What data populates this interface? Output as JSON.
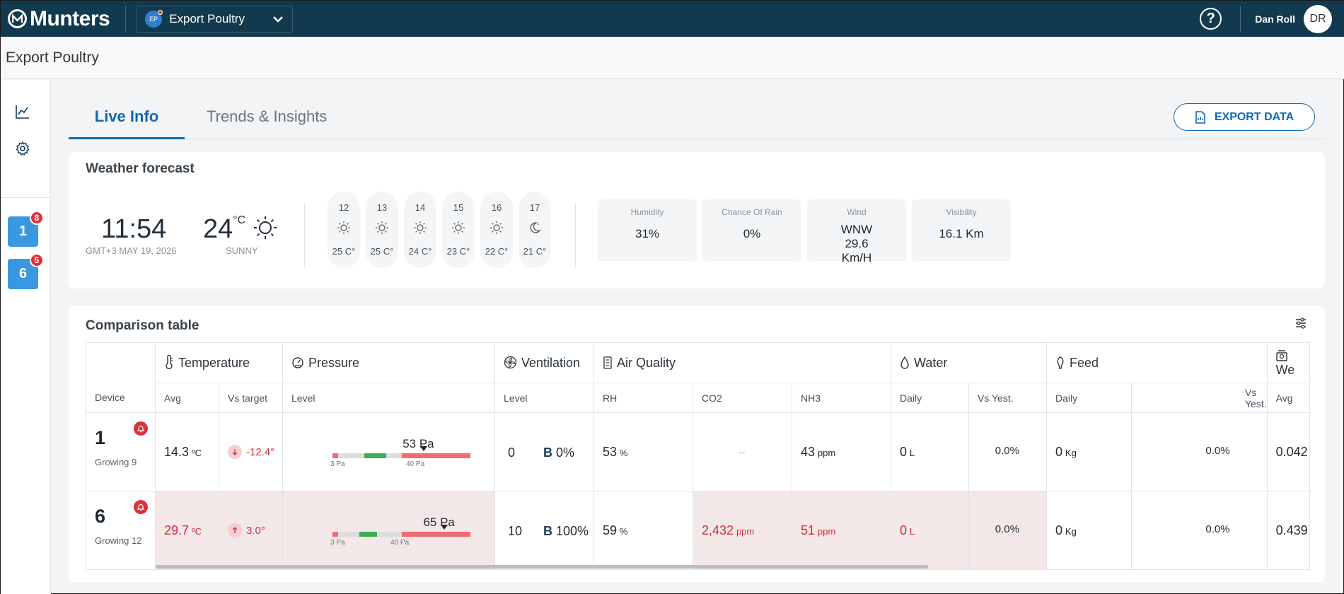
{
  "app": {
    "brand": "Munters"
  },
  "header": {
    "farm": {
      "initials": "EP",
      "name": "Export Poultry"
    },
    "help_symbol": "?",
    "user": {
      "name": "Dan Roll",
      "initials": "DR"
    }
  },
  "page": {
    "title": "Export Poultry"
  },
  "rail": {
    "houses": [
      {
        "number": "1",
        "badge": "8"
      },
      {
        "number": "6",
        "badge": "5"
      }
    ]
  },
  "tabs": {
    "live": "Live Info",
    "trends": "Trends & Insights"
  },
  "export_label": "EXPORT DATA",
  "weather": {
    "title": "Weather forecast",
    "time": "11:54",
    "datetime_sub": "GMT+3 MAY 19, 2026",
    "temp": "24",
    "temp_unit": "°C",
    "condition": "SUNNY",
    "hourly": [
      {
        "hour": "12",
        "icon": "sun-icon",
        "temp": "25 C°"
      },
      {
        "hour": "13",
        "icon": "sun-icon",
        "temp": "25 C°"
      },
      {
        "hour": "14",
        "icon": "sun-icon",
        "temp": "24 C°"
      },
      {
        "hour": "15",
        "icon": "sun-icon",
        "temp": "23 C°"
      },
      {
        "hour": "16",
        "icon": "sun-icon",
        "temp": "22 C°"
      },
      {
        "hour": "17",
        "icon": "moon-icon",
        "temp": "21 C°"
      }
    ],
    "stats": [
      {
        "label": "Humidity",
        "value": "31%"
      },
      {
        "label": "Chance Of Rain",
        "value": "0%"
      },
      {
        "label": "Wind",
        "value": "WNW 29.6 Km/H"
      },
      {
        "label": "Visibility",
        "value": "16.1 Km"
      }
    ]
  },
  "comparison": {
    "title": "Comparison table",
    "groups": {
      "temperature": "Temperature",
      "pressure": "Pressure",
      "ventilation": "Ventilation",
      "air_quality": "Air Quality",
      "water": "Water",
      "feed": "Feed",
      "weight": "We"
    },
    "sub": {
      "device": "Device",
      "avg": "Avg",
      "vs_target": "Vs target",
      "level": "Level",
      "vent_level": "Level",
      "rh": "RH",
      "co2": "CO2",
      "nh3": "NH3",
      "water_daily": "Daily",
      "water_vs": "Vs Yest.",
      "feed_daily": "Daily",
      "feed_vs": "Vs Yest.",
      "weight_avg": "Avg"
    },
    "pressure_ticks": {
      "low": "3 Pa",
      "high": "40 Pa"
    },
    "rows": [
      {
        "device": "1",
        "growing": "Growing 9",
        "temp": "14.3",
        "temp_unit": "ºC",
        "temp_diff": "-12.4°",
        "temp_dir": "down",
        "pressure": "53 Pa",
        "pressure_value": 53,
        "vent_level": "0",
        "vent_b": "B",
        "vent_pct": "0%",
        "rh": "53",
        "rh_unit": "%",
        "co2": "--",
        "nh3": "43",
        "nh3_unit": "ppm",
        "water": "0",
        "water_unit": "L",
        "water_vs": "0.0%",
        "feed": "0",
        "feed_unit": "Kg",
        "feed_vs": "0.0%",
        "weight": "0.042"
      },
      {
        "device": "6",
        "growing": "Growing 12",
        "temp": "29.7",
        "temp_unit": "ºC",
        "temp_diff": "3.0°",
        "temp_dir": "up",
        "pressure": "65 Pa",
        "pressure_value": 65,
        "vent_level": "10",
        "vent_b": "B",
        "vent_pct": "100%",
        "rh": "59",
        "rh_unit": "%",
        "co2": "2,432",
        "co2_unit": "ppm",
        "nh3": "51",
        "nh3_unit": "ppm",
        "water": "0",
        "water_unit": "L",
        "water_vs": "0.0%",
        "feed": "0",
        "feed_unit": "Kg",
        "feed_vs": "0.0%",
        "weight": "0.439"
      }
    ]
  },
  "colors": {
    "topbar": "#123a4f",
    "accent": "#1167b1",
    "alarm_bg": "#f3e7e8",
    "alarm_text": "#cc2f3c",
    "house_tile": "#3a98e0"
  }
}
